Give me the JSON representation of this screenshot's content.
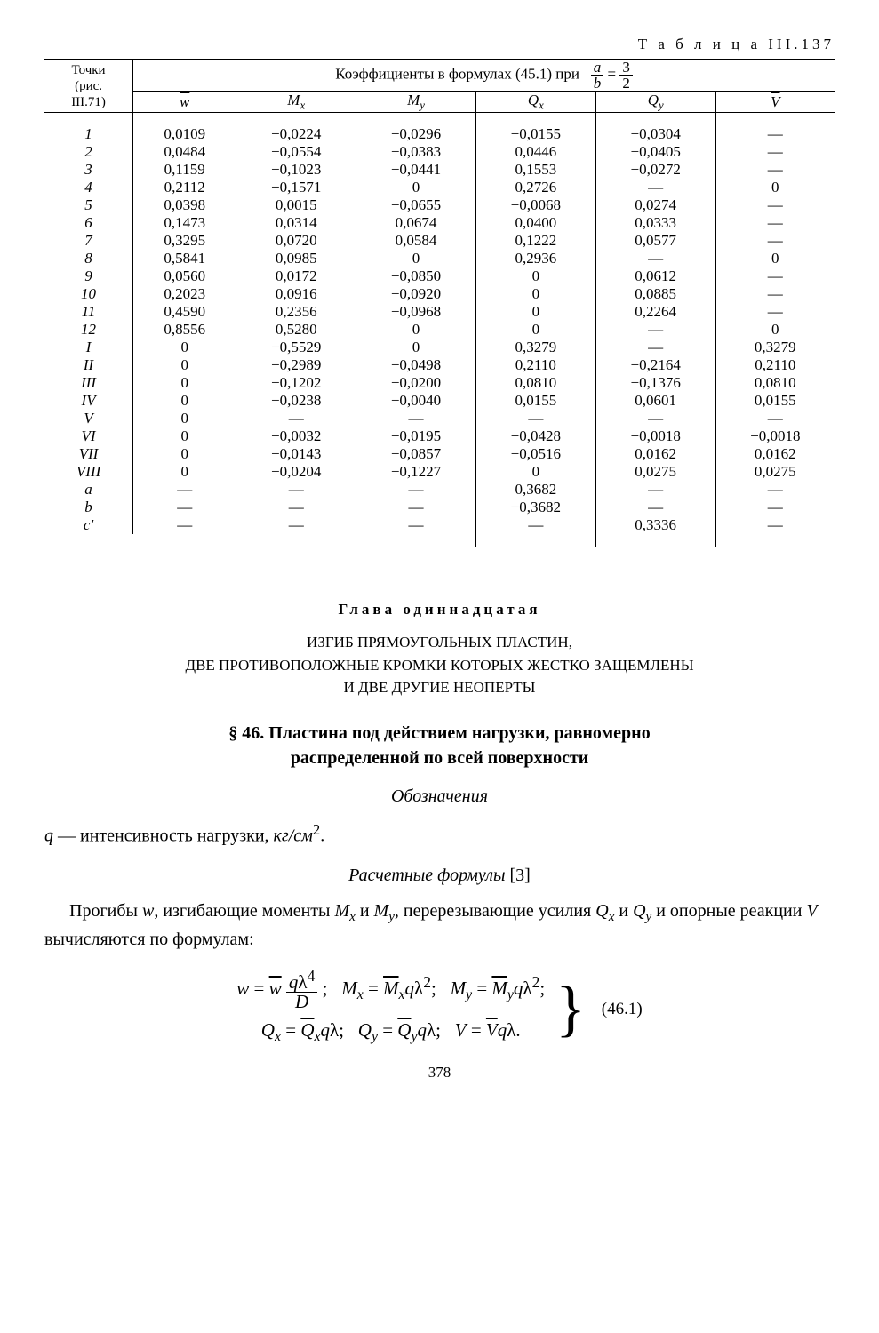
{
  "tableCaption": "Т а б л и ц а  III.137",
  "header": {
    "points": "Точки\n(рис.\nIII.71)",
    "coeffHeader": "Коэффициенты в формулах (45.1) при",
    "ratioN": "a",
    "ratioD": "b",
    "rhsN": "3",
    "rhsD": "2",
    "cols": [
      "w",
      "M",
      "M",
      "Q",
      "Q",
      "V"
    ],
    "colSubs": [
      "",
      "x",
      "y",
      "x",
      "y",
      ""
    ]
  },
  "rows": [
    {
      "p": "1",
      "v": [
        "0,0109",
        "−0,0224",
        "−0,0296",
        "−0,0155",
        "−0,0304",
        "—"
      ]
    },
    {
      "p": "2",
      "v": [
        "0,0484",
        "−0,0554",
        "−0,0383",
        "0,0446",
        "−0,0405",
        "—"
      ]
    },
    {
      "p": "3",
      "v": [
        "0,1159",
        "−0,1023",
        "−0,0441",
        "0,1553",
        "−0,0272",
        "—"
      ]
    },
    {
      "p": "4",
      "v": [
        "0,2112",
        "−0,1571",
        "0",
        "0,2726",
        "—",
        "0"
      ]
    },
    {
      "p": "5",
      "v": [
        "0,0398",
        "0,0015",
        "−0,0655",
        "−0,0068",
        "0,0274",
        "—"
      ]
    },
    {
      "p": "6",
      "v": [
        "0,1473",
        "0,0314",
        "0,0674",
        "0,0400",
        "0,0333",
        "—"
      ]
    },
    {
      "p": "7",
      "v": [
        "0,3295",
        "0,0720",
        "0,0584",
        "0,1222",
        "0,0577",
        "—"
      ]
    },
    {
      "p": "8",
      "v": [
        "0,5841",
        "0,0985",
        "0",
        "0,2936",
        "—",
        "0"
      ]
    },
    {
      "p": "9",
      "v": [
        "0,0560",
        "0,0172",
        "−0,0850",
        "0",
        "0,0612",
        "—"
      ]
    },
    {
      "p": "10",
      "v": [
        "0,2023",
        "0,0916",
        "−0,0920",
        "0",
        "0,0885",
        "—"
      ]
    },
    {
      "p": "11",
      "v": [
        "0,4590",
        "0,2356",
        "−0,0968",
        "0",
        "0,2264",
        "—"
      ]
    },
    {
      "p": "12",
      "v": [
        "0,8556",
        "0,5280",
        "0",
        "0",
        "—",
        "0"
      ]
    },
    {
      "p": "I",
      "v": [
        "0",
        "−0,5529",
        "0",
        "0,3279",
        "—",
        "0,3279"
      ]
    },
    {
      "p": "II",
      "v": [
        "0",
        "−0,2989",
        "−0,0498",
        "0,2110",
        "−0,2164",
        "0,2110"
      ]
    },
    {
      "p": "III",
      "v": [
        "0",
        "−0,1202",
        "−0,0200",
        "0,0810",
        "−0,1376",
        "0,0810"
      ]
    },
    {
      "p": "IV",
      "v": [
        "0",
        "−0,0238",
        "−0,0040",
        "0,0155",
        "0,0601",
        "0,0155"
      ]
    },
    {
      "p": "V",
      "v": [
        "0",
        "—",
        "—",
        "—",
        "—",
        "—"
      ]
    },
    {
      "p": "VI",
      "v": [
        "0",
        "−0,0032",
        "−0,0195",
        "−0,0428",
        "−0,0018",
        "−0,0018"
      ]
    },
    {
      "p": "VII",
      "v": [
        "0",
        "−0,0143",
        "−0,0857",
        "−0,0516",
        "0,0162",
        "0,0162"
      ]
    },
    {
      "p": "VIII",
      "v": [
        "0",
        "−0,0204",
        "−0,1227",
        "0",
        "0,0275",
        "0,0275"
      ]
    },
    {
      "p": "a",
      "v": [
        "—",
        "—",
        "—",
        "0,3682",
        "—",
        "—"
      ]
    },
    {
      "p": "b",
      "v": [
        "—",
        "—",
        "—",
        "−0,3682",
        "—",
        "—"
      ]
    },
    {
      "p": "c′",
      "v": [
        "—",
        "—",
        "—",
        "—",
        "0,3336",
        "—"
      ]
    }
  ],
  "chapterLabel": "Глава одиннадцатая",
  "chapterTitle1": "ИЗГИБ ПРЯМОУГОЛЬНЫХ ПЛАСТИН,",
  "chapterTitle2": "ДВЕ ПРОТИВОПОЛОЖНЫЕ КРОМКИ КОТОРЫХ ЖЕСТКО ЗАЩЕМЛЕНЫ",
  "chapterTitle3": "И ДВЕ ДРУГИЕ НЕОПЕРТЫ",
  "sectionTitle1": "§ 46. Пластина под действием нагрузки, равномерно",
  "sectionTitle2": "распределенной по всей поверхности",
  "subhead1": "Обозначения",
  "def1a": "q",
  "def1b": " — интенсивность нагрузки, ",
  "def1c": "кг/см",
  "def1d": "2",
  "def1e": ".",
  "subhead2": "Расчетные формулы ",
  "subhead2ref": "[3]",
  "para1": "Прогибы ",
  "para1b": "w",
  "para1c": ", изгибающие моменты ",
  "para1d": "M",
  "para1dx": "x",
  "para1e": " и ",
  "para1f": "M",
  "para1fy": "y",
  "para1g": ", перерезывающие усилия ",
  "para1h": "Q",
  "para1hx": "x",
  "para1i": " и ",
  "para1j": "Q",
  "para1jy": "y",
  "para1k": " и опорные реакции ",
  "para1l": "V",
  "para1m": " вычисляются по формулам:",
  "eqNum": "(46.1)",
  "pageNum": "378"
}
